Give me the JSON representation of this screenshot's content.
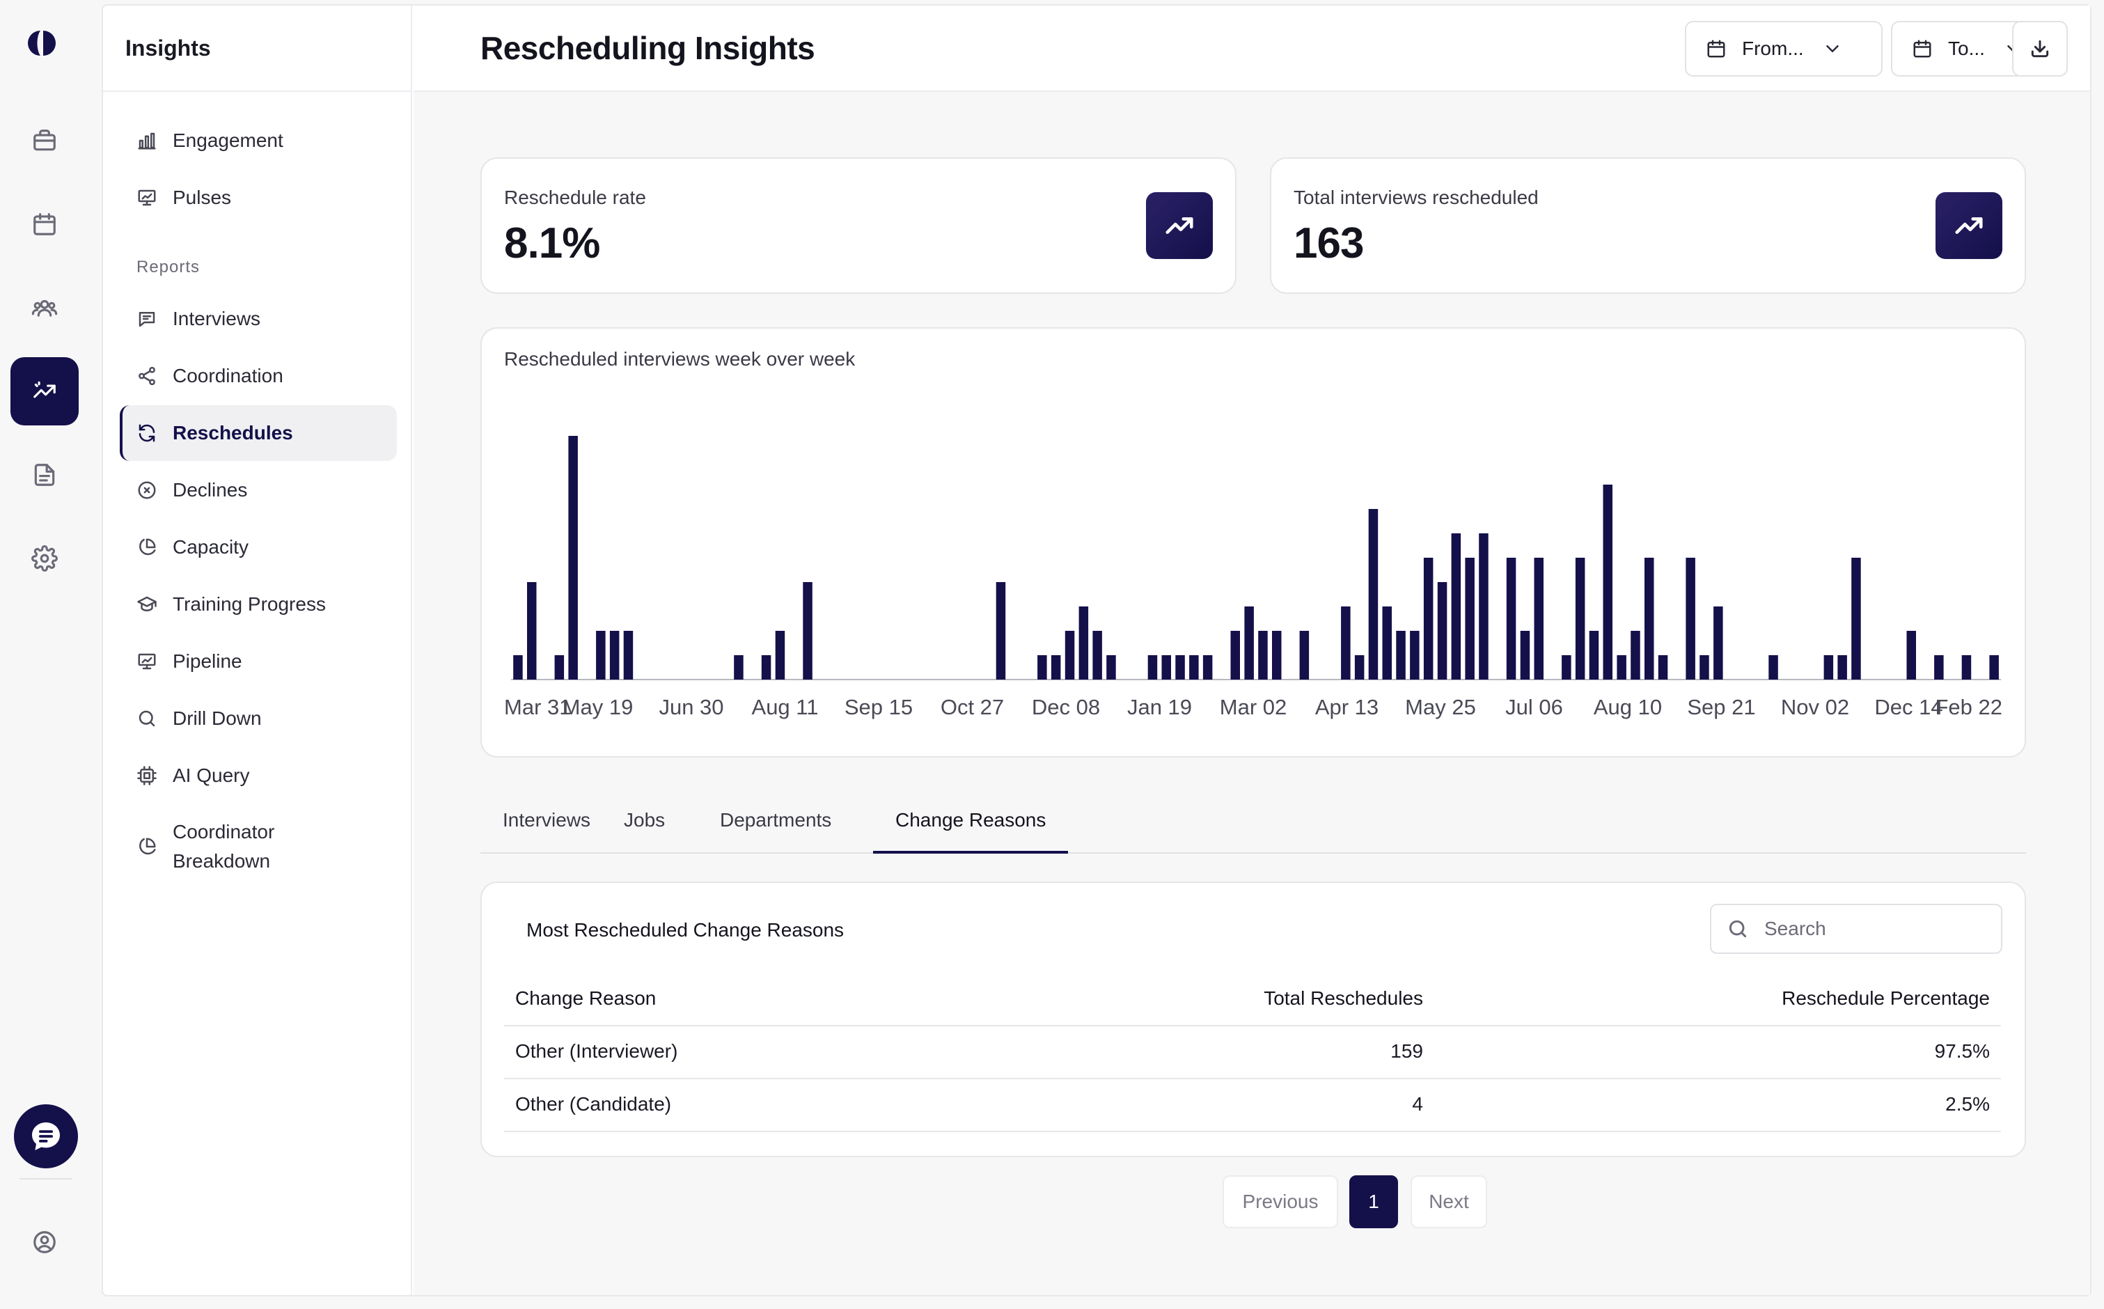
{
  "rail": {
    "items": [
      {
        "icon": "briefcase-icon"
      },
      {
        "icon": "calendar-icon"
      },
      {
        "icon": "users-icon"
      },
      {
        "icon": "analytics-icon",
        "active": true
      },
      {
        "icon": "document-icon"
      },
      {
        "icon": "gear-icon"
      }
    ],
    "chat_icon": "chat-bubble-icon",
    "profile_icon": "user-circle-icon"
  },
  "sidebar": {
    "title": "Insights",
    "top_items": [
      {
        "label": "Engagement",
        "icon": "bar-chart-icon"
      },
      {
        "label": "Pulses",
        "icon": "presentation-chart-icon"
      }
    ],
    "reports_label": "Reports",
    "report_items": [
      {
        "label": "Interviews",
        "icon": "chat-icon"
      },
      {
        "label": "Coordination",
        "icon": "share-icon"
      },
      {
        "label": "Reschedules",
        "icon": "refresh-icon",
        "active": true
      },
      {
        "label": "Declines",
        "icon": "x-circle-icon"
      },
      {
        "label": "Capacity",
        "icon": "pie-chart-icon"
      },
      {
        "label": "Training Progress",
        "icon": "graduation-cap-icon"
      },
      {
        "label": "Pipeline",
        "icon": "presentation-chart-icon"
      },
      {
        "label": "Drill Down",
        "icon": "search-icon"
      },
      {
        "label": "AI Query",
        "icon": "chip-icon"
      },
      {
        "label": "Coordinator\nBreakdown",
        "icon": "pie-chart-icon"
      }
    ]
  },
  "header": {
    "title": "Rescheduling Insights",
    "from_label": "From...",
    "to_label": "To...",
    "download_icon": "download-icon"
  },
  "stats": [
    {
      "label": "Reschedule rate",
      "value": "8.1%",
      "icon": "trending-up-icon"
    },
    {
      "label": "Total interviews rescheduled",
      "value": "163",
      "icon": "trending-up-icon"
    }
  ],
  "chart_data": {
    "type": "bar",
    "title": "Rescheduled interviews week over week",
    "x_tick_labels": [
      "Mar 31",
      "May 19",
      "Jun 30",
      "Aug 11",
      "Sep 15",
      "Oct 27",
      "Dec 08",
      "Jan 19",
      "Mar 02",
      "Apr 13",
      "May 25",
      "Jul 06",
      "Aug 10",
      "Sep 21",
      "Nov 02",
      "Dec 14",
      "Feb 22"
    ],
    "values": [
      1,
      4,
      0,
      1,
      10,
      0,
      2,
      2,
      2,
      0,
      0,
      0,
      0,
      0,
      0,
      0,
      1,
      0,
      1,
      2,
      0,
      4,
      0,
      0,
      0,
      0,
      0,
      0,
      0,
      0,
      0,
      0,
      0,
      0,
      0,
      4,
      0,
      0,
      1,
      1,
      2,
      3,
      2,
      1,
      0,
      0,
      1,
      1,
      1,
      1,
      1,
      0,
      2,
      3,
      2,
      2,
      0,
      2,
      0,
      0,
      3,
      1,
      7,
      3,
      2,
      2,
      5,
      4,
      6,
      5,
      6,
      0,
      5,
      2,
      5,
      0,
      1,
      5,
      2,
      8,
      1,
      2,
      5,
      1,
      0,
      5,
      1,
      3,
      0,
      0,
      0,
      1,
      0,
      0,
      0,
      1,
      1,
      5,
      0,
      0,
      0,
      2,
      0,
      1,
      0,
      1,
      0,
      1
    ],
    "color": "#14104a",
    "grid": false,
    "legend": "none"
  },
  "tabs": [
    {
      "label": "Interviews"
    },
    {
      "label": "Jobs"
    },
    {
      "label": "Departments"
    },
    {
      "label": "Change Reasons",
      "active": true
    }
  ],
  "table": {
    "title": "Most Rescheduled Change Reasons",
    "search_placeholder": "Search",
    "columns": [
      "Change Reason",
      "Total Reschedules",
      "Reschedule Percentage"
    ],
    "rows": [
      [
        "Other (Interviewer)",
        "159",
        "97.5%"
      ],
      [
        "Other (Candidate)",
        "4",
        "2.5%"
      ]
    ]
  },
  "pagination": {
    "previous": "Previous",
    "current": "1",
    "next": "Next"
  },
  "colors": {
    "accent": "#14104a",
    "border": "#e6e6ea",
    "background": "#f7f7f8"
  }
}
